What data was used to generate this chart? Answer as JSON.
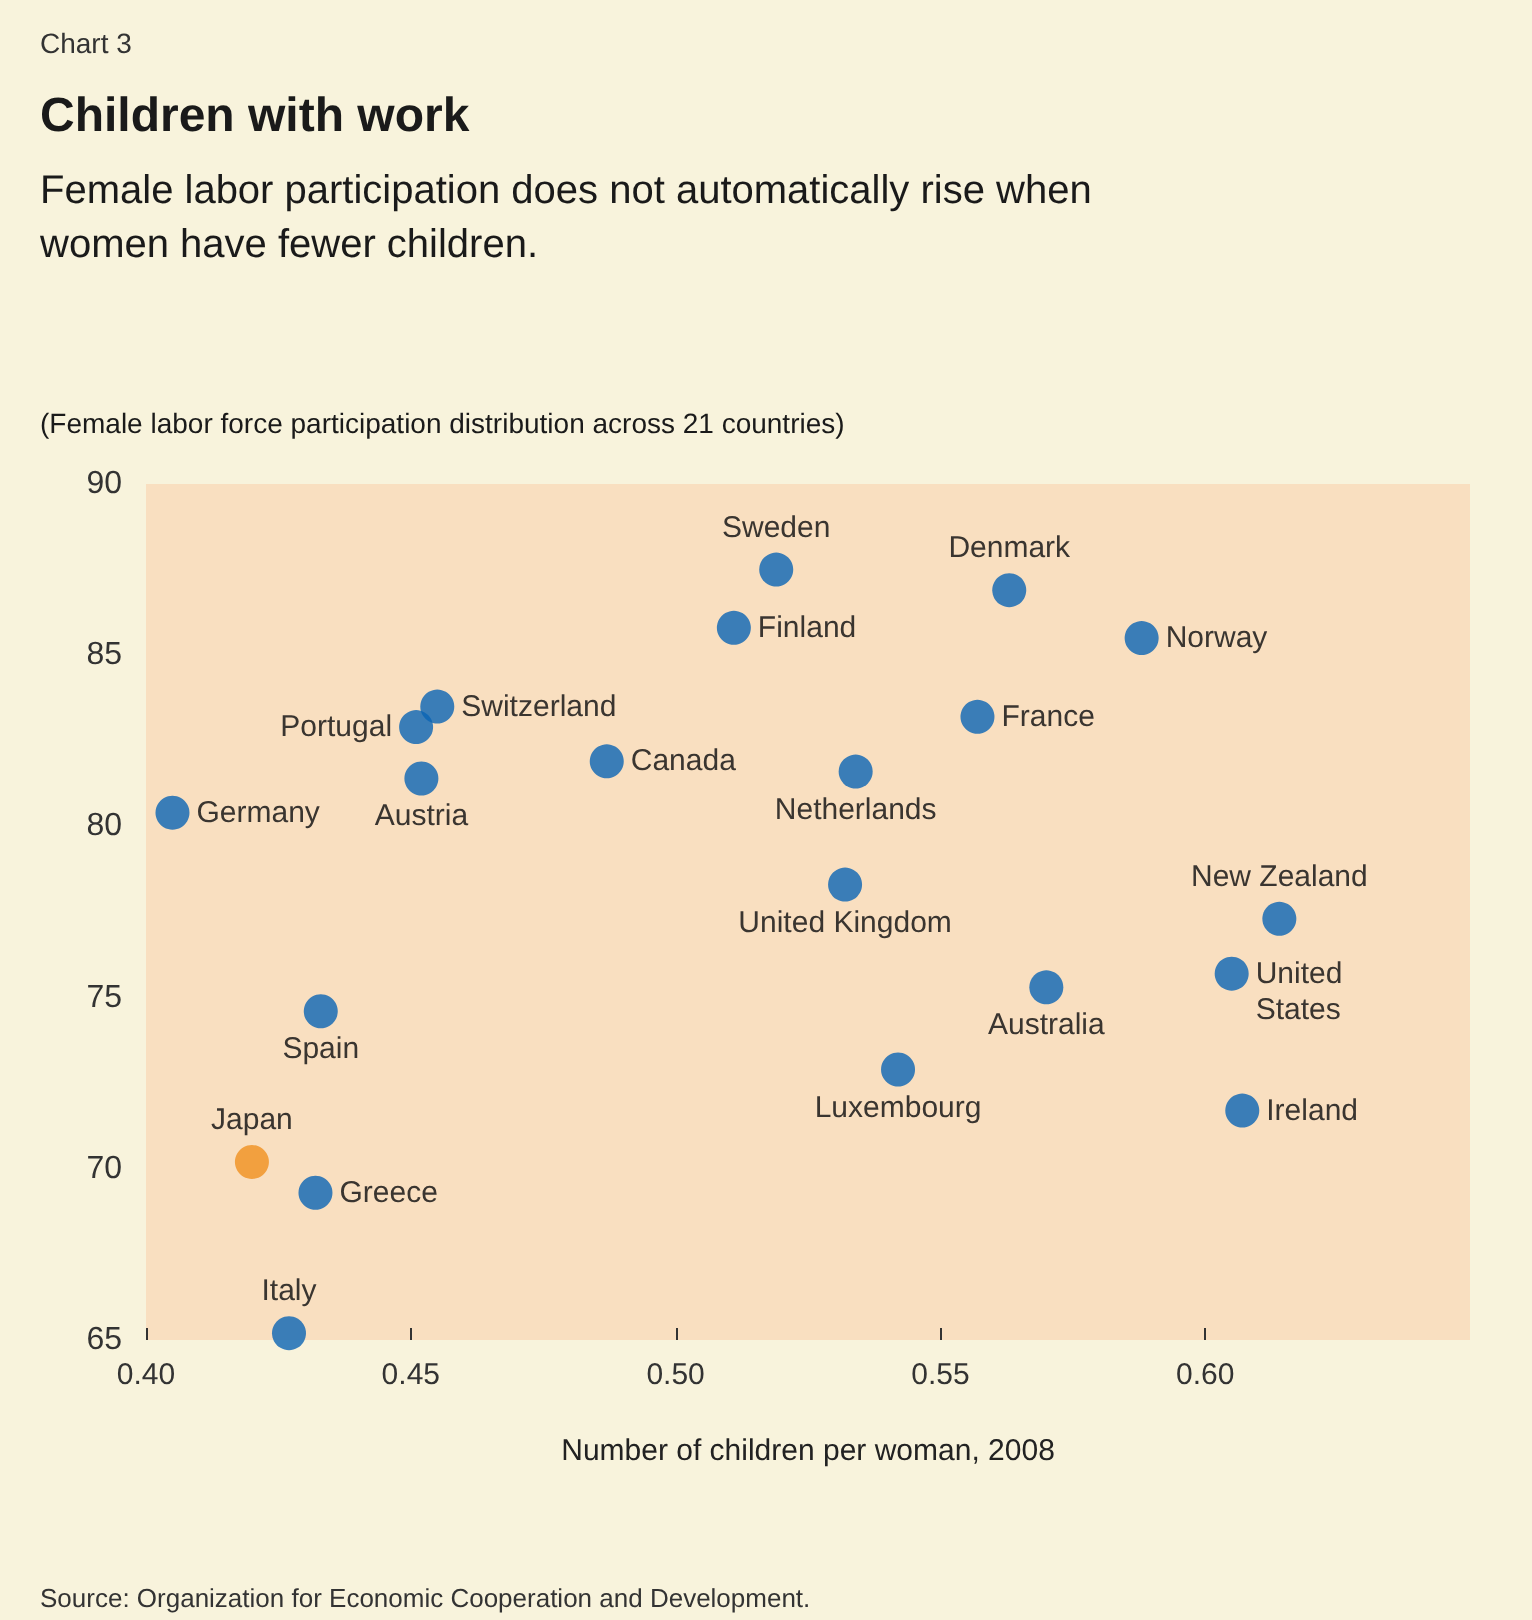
{
  "chart_data": {
    "type": "scatter",
    "title": "Children with work",
    "subtitle": "Female labor participation does not automatically rise when women have fewer children.",
    "xlabel": "Number of children per woman, 2008",
    "annotations": [
      "Chart 3",
      "(Female labor force participation distribution across 21 countries)",
      "Source: Organization for Economic Cooperation and Development.",
      {
        "text": "Germany",
        "x": 0.405,
        "y": 80.4
      },
      {
        "text": "Portugal",
        "x": 0.451,
        "y": 82.9
      },
      {
        "text": "Switzerland",
        "x": 0.455,
        "y": 83.5
      },
      {
        "text": "Austria",
        "x": 0.452,
        "y": 81.4
      },
      {
        "text": "Canada",
        "x": 0.487,
        "y": 81.9
      },
      {
        "text": "Sweden",
        "x": 0.519,
        "y": 87.5
      },
      {
        "text": "Finland",
        "x": 0.511,
        "y": 85.8
      },
      {
        "text": "Spain",
        "x": 0.433,
        "y": 74.6
      },
      {
        "text": "Japan",
        "x": 0.42,
        "y": 70.2
      },
      {
        "text": "Greece",
        "x": 0.432,
        "y": 69.3
      },
      {
        "text": "Italy",
        "x": 0.427,
        "y": 65.2
      },
      {
        "text": "Denmark",
        "x": 0.563,
        "y": 86.9
      },
      {
        "text": "Norway",
        "x": 0.588,
        "y": 85.5
      },
      {
        "text": "France",
        "x": 0.557,
        "y": 83.2
      },
      {
        "text": "Netherlands",
        "x": 0.534,
        "y": 81.6
      },
      {
        "text": "United Kingdom",
        "x": 0.532,
        "y": 78.3
      },
      {
        "text": "New Zealand",
        "x": 0.614,
        "y": 77.3
      },
      {
        "text": "United States",
        "x": 0.605,
        "y": 75.7
      },
      {
        "text": "Australia",
        "x": 0.57,
        "y": 75.3
      },
      {
        "text": "Luxembourg",
        "x": 0.542,
        "y": 72.9
      },
      {
        "text": "Ireland",
        "x": 0.607,
        "y": 71.7
      }
    ],
    "series": [
      {
        "x": [
          0.405,
          0.451,
          0.455,
          0.452,
          0.487,
          0.519,
          0.511,
          0.433,
          0.42,
          0.432,
          0.427,
          0.563,
          0.588,
          0.557,
          0.534,
          0.532,
          0.614,
          0.605,
          0.57,
          0.542,
          0.607
        ],
        "values": [
          80.4,
          82.9,
          83.5,
          81.4,
          81.9,
          87.5,
          85.8,
          74.6,
          70.2,
          69.3,
          65.2,
          86.9,
          85.5,
          83.2,
          81.6,
          78.3,
          77.3,
          75.7,
          75.3,
          72.9,
          71.7
        ],
        "colors": [
          "#0a64b4",
          "#0a64b4",
          "#0a64b4",
          "#0a64b4",
          "#0a64b4",
          "#0a64b4",
          "#0a64b4",
          "#0a64b4",
          "#f0901e",
          "#0a64b4",
          "#0a64b4",
          "#0a64b4",
          "#0a64b4",
          "#0a64b4",
          "#0a64b4",
          "#0a64b4",
          "#0a64b4",
          "#0a64b4",
          "#0a64b4",
          "#0a64b4",
          "#0a64b4"
        ]
      }
    ],
    "xlim": [
      0.4,
      0.65
    ],
    "xticks": [
      {
        "value": 0.4,
        "label": "0.40"
      },
      {
        "value": 0.45,
        "label": "0.45"
      },
      {
        "value": 0.5,
        "label": "0.50"
      },
      {
        "value": 0.55,
        "label": "0.55"
      },
      {
        "value": 0.6,
        "label": "0.60"
      }
    ],
    "ylim": [
      65,
      90
    ],
    "yticks": [
      65,
      70,
      75,
      80,
      85,
      90
    ],
    "grid": false,
    "marker": "circle"
  }
}
